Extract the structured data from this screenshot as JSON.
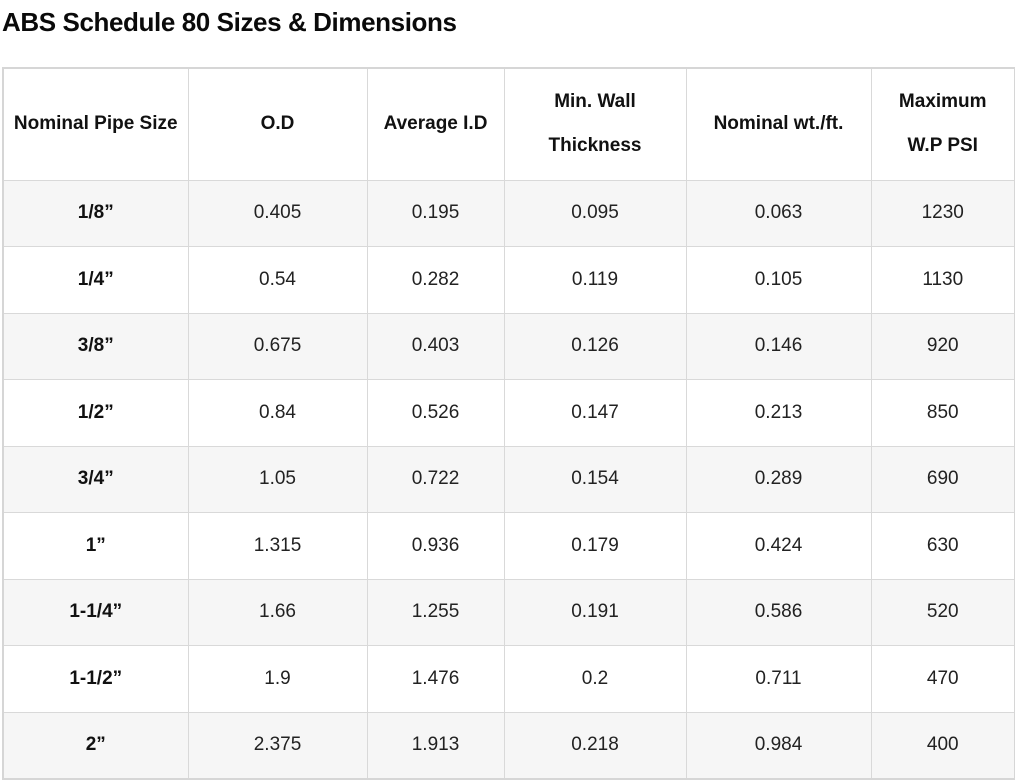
{
  "title": "ABS Schedule 80 Sizes & Dimensions",
  "table": {
    "headers": [
      "Nominal Pipe Size",
      "O.D",
      "Average I.D",
      "Min. Wall Thickness",
      "Nominal wt./ft.",
      "Maximum W.P PSI"
    ],
    "rows": [
      [
        "1/8”",
        "0.405",
        "0.195",
        "0.095",
        "0.063",
        "1230"
      ],
      [
        "1/4”",
        "0.54",
        "0.282",
        "0.119",
        "0.105",
        "1130"
      ],
      [
        "3/8”",
        "0.675",
        "0.403",
        "0.126",
        "0.146",
        "920"
      ],
      [
        "1/2”",
        "0.84",
        "0.526",
        "0.147",
        "0.213",
        "850"
      ],
      [
        "3/4”",
        "1.05",
        "0.722",
        "0.154",
        "0.289",
        "690"
      ],
      [
        "1”",
        "1.315",
        "0.936",
        "0.179",
        "0.424",
        "630"
      ],
      [
        "1-1/4”",
        "1.66",
        "1.255",
        "0.191",
        "0.586",
        "520"
      ],
      [
        "1-1/2”",
        "1.9",
        "1.476",
        "0.2",
        "0.711",
        "470"
      ],
      [
        "2”",
        "2.375",
        "1.913",
        "0.218",
        "0.984",
        "400"
      ]
    ]
  }
}
